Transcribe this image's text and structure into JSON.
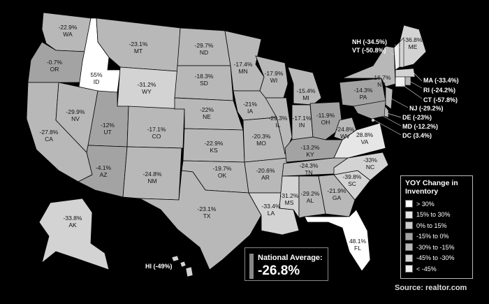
{
  "legend": {
    "title": "YOY Change in Inventory",
    "items": [
      {
        "label": "> 30%",
        "color": "#ffffff"
      },
      {
        "label": "15% to 30%",
        "color": "#e6e6e6"
      },
      {
        "label": "0% to 15%",
        "color": "#cccccc"
      },
      {
        "label": "-15% to 0%",
        "color": "#a3a3a3"
      },
      {
        "label": "-30% to -15%",
        "color": "#b8b8b8"
      },
      {
        "label": "-45% to -30%",
        "color": "#d3d3d3"
      },
      {
        "label": "< -45%",
        "color": "#efefef"
      }
    ]
  },
  "national": {
    "label": "National Average:",
    "value": "-26.8%"
  },
  "source": "Source: realtor.com",
  "states": [
    {
      "abbr": "WA",
      "value": "-22.9%",
      "color": "#b8b8b8"
    },
    {
      "abbr": "OR",
      "value": "-0.7%",
      "color": "#a3a3a3"
    },
    {
      "abbr": "CA",
      "value": "-27.8%",
      "color": "#b8b8b8"
    },
    {
      "abbr": "ID",
      "value": "55%",
      "color": "#ffffff"
    },
    {
      "abbr": "NV",
      "value": "-29.9%",
      "color": "#b8b8b8"
    },
    {
      "abbr": "MT",
      "value": "-23.1%",
      "color": "#b8b8b8"
    },
    {
      "abbr": "WY",
      "value": "-31.2%",
      "color": "#d3d3d3"
    },
    {
      "abbr": "UT",
      "value": "-12%",
      "color": "#a3a3a3"
    },
    {
      "abbr": "AZ",
      "value": "-4.1%",
      "color": "#a3a3a3"
    },
    {
      "abbr": "CO",
      "value": "-17.1%",
      "color": "#b8b8b8"
    },
    {
      "abbr": "NM",
      "value": "-24.8%",
      "color": "#b8b8b8"
    },
    {
      "abbr": "ND",
      "value": "-29.7%",
      "color": "#b8b8b8"
    },
    {
      "abbr": "SD",
      "value": "-18.3%",
      "color": "#b8b8b8"
    },
    {
      "abbr": "NE",
      "value": "-22%",
      "color": "#b8b8b8"
    },
    {
      "abbr": "KS",
      "value": "-22.9%",
      "color": "#b8b8b8"
    },
    {
      "abbr": "OK",
      "value": "-19.7%",
      "color": "#b8b8b8"
    },
    {
      "abbr": "TX",
      "value": "-23.1%",
      "color": "#b8b8b8"
    },
    {
      "abbr": "MN",
      "value": "-17.4%",
      "color": "#b8b8b8"
    },
    {
      "abbr": "IA",
      "value": "-21%",
      "color": "#b8b8b8"
    },
    {
      "abbr": "MO",
      "value": "-20.3%",
      "color": "#b8b8b8"
    },
    {
      "abbr": "AR",
      "value": "-20.6%",
      "color": "#b8b8b8"
    },
    {
      "abbr": "LA",
      "value": "-33.4%",
      "color": "#d3d3d3"
    },
    {
      "abbr": "WI",
      "value": "-17.9%",
      "color": "#b8b8b8"
    },
    {
      "abbr": "IL",
      "value": "-29.3%",
      "color": "#b8b8b8"
    },
    {
      "abbr": "MI",
      "value": "-15.4%",
      "color": "#b8b8b8"
    },
    {
      "abbr": "IN",
      "value": "-17.1%",
      "color": "#b8b8b8"
    },
    {
      "abbr": "OH",
      "value": "-11.9%",
      "color": "#a3a3a3"
    },
    {
      "abbr": "KY",
      "value": "-13.2%",
      "color": "#a3a3a3"
    },
    {
      "abbr": "TN",
      "value": "-24.3%",
      "color": "#b8b8b8"
    },
    {
      "abbr": "MS",
      "value": "-31.2%",
      "color": "#d3d3d3"
    },
    {
      "abbr": "AL",
      "value": "-29.2%",
      "color": "#b8b8b8"
    },
    {
      "abbr": "GA",
      "value": "-21.9%",
      "color": "#b8b8b8"
    },
    {
      "abbr": "FL",
      "value": "48.1%",
      "color": "#ffffff"
    },
    {
      "abbr": "SC",
      "value": "-39.8%",
      "color": "#d3d3d3"
    },
    {
      "abbr": "NC",
      "value": "-33%",
      "color": "#d3d3d3"
    },
    {
      "abbr": "VA",
      "value": "28.8%",
      "color": "#e6e6e6"
    },
    {
      "abbr": "WV",
      "value": "-24.8%",
      "color": "#b8b8b8"
    },
    {
      "abbr": "PA",
      "value": "-14.3%",
      "color": "#a3a3a3"
    },
    {
      "abbr": "NY",
      "value": "-16.7%",
      "color": "#b8b8b8"
    },
    {
      "abbr": "ME",
      "value": "-36.8%",
      "color": "#d3d3d3"
    },
    {
      "abbr": "AK",
      "value": "-33.8%",
      "color": "#d3d3d3"
    }
  ],
  "callouts": [
    {
      "text": "NH (-34.5%)"
    },
    {
      "text": "VT (-50.8%)"
    },
    {
      "text": "MA (-33.4%)"
    },
    {
      "text": "RI (-24.2%)"
    },
    {
      "text": "CT (-57.8%)"
    },
    {
      "text": "NJ (-29.2%)"
    },
    {
      "text": "DE (-23%)"
    },
    {
      "text": "MD (-12.2%)"
    },
    {
      "text": "DC (3.4%)"
    },
    {
      "text": "HI (-49%)"
    }
  ]
}
